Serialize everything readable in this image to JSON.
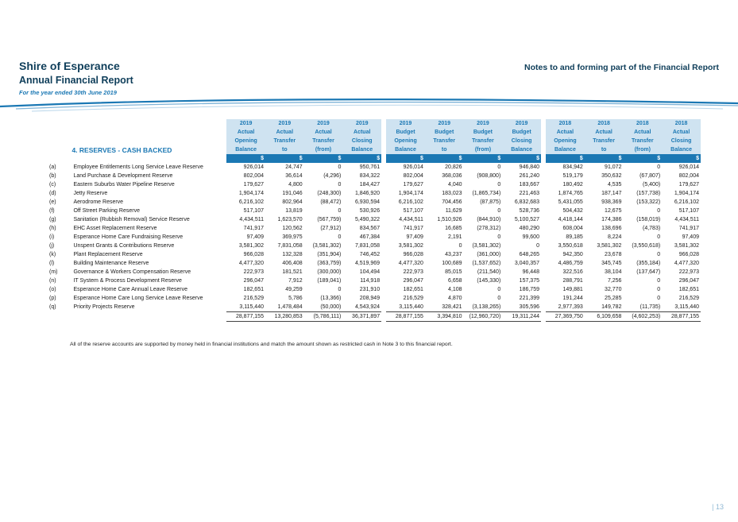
{
  "header": {
    "org": "Shire of Esperance",
    "report": "Annual Financial Report",
    "period": "For the year ended 30th June 2019",
    "notes_title": "Notes to and forming part of the Financial Report"
  },
  "section_title": "4. RESERVES - CASH BACKED",
  "column_groups": [
    [
      {
        "year": "2019",
        "kind": "Actual",
        "l1": "Opening",
        "l2": "Balance"
      },
      {
        "year": "2019",
        "kind": "Actual",
        "l1": "Transfer",
        "l2": "to"
      },
      {
        "year": "2019",
        "kind": "Actual",
        "l1": "Transfer",
        "l2": "(from)"
      },
      {
        "year": "2019",
        "kind": "Actual",
        "l1": "Closing",
        "l2": "Balance"
      }
    ],
    [
      {
        "year": "2019",
        "kind": "Budget",
        "l1": "Opening",
        "l2": "Balance"
      },
      {
        "year": "2019",
        "kind": "Budget",
        "l1": "Transfer",
        "l2": "to"
      },
      {
        "year": "2019",
        "kind": "Budget",
        "l1": "Transfer",
        "l2": "(from)"
      },
      {
        "year": "2019",
        "kind": "Budget",
        "l1": "Closing",
        "l2": "Balance"
      }
    ],
    [
      {
        "year": "2018",
        "kind": "Actual",
        "l1": "Opening",
        "l2": "Balance"
      },
      {
        "year": "2018",
        "kind": "Actual",
        "l1": "Transfer",
        "l2": "to"
      },
      {
        "year": "2018",
        "kind": "Actual",
        "l1": "Transfer",
        "l2": "(from)"
      },
      {
        "year": "2018",
        "kind": "Actual",
        "l1": "Closing",
        "l2": "Balance"
      }
    ]
  ],
  "currency_symbol": "$",
  "rows": [
    {
      "letter": "(a)",
      "name": "Employee Entitlements Long Service Leave Reserve",
      "values": [
        "926,014",
        "24,747",
        "0",
        "950,761",
        "926,014",
        "20,826",
        "0",
        "946,840",
        "834,942",
        "91,072",
        "0",
        "926,014"
      ]
    },
    {
      "letter": "(b)",
      "name": "Land Purchase & Development Reserve",
      "values": [
        "802,004",
        "36,614",
        "(4,296)",
        "834,322",
        "802,004",
        "368,036",
        "(908,800)",
        "261,240",
        "519,179",
        "350,632",
        "(67,807)",
        "802,004"
      ]
    },
    {
      "letter": "(c)",
      "name": "Eastern Suburbs Water Pipeline Reserve",
      "values": [
        "179,627",
        "4,800",
        "0",
        "184,427",
        "179,627",
        "4,040",
        "0",
        "183,667",
        "180,492",
        "4,535",
        "(5,400)",
        "179,627"
      ]
    },
    {
      "letter": "(d)",
      "name": "Jetty Reserve",
      "values": [
        "1,904,174",
        "191,046",
        "(248,300)",
        "1,846,920",
        "1,904,174",
        "183,023",
        "(1,865,734)",
        "221,463",
        "1,874,765",
        "187,147",
        "(157,738)",
        "1,904,174"
      ]
    },
    {
      "letter": "(e)",
      "name": "Aerodrome Reserve",
      "values": [
        "6,216,102",
        "802,964",
        "(88,472)",
        "6,930,594",
        "6,216,102",
        "704,456",
        "(87,875)",
        "6,832,683",
        "5,431,055",
        "938,369",
        "(153,322)",
        "6,216,102"
      ]
    },
    {
      "letter": "(f)",
      "name": "Off Street Parking Reserve",
      "values": [
        "517,107",
        "13,819",
        "0",
        "530,926",
        "517,107",
        "11,629",
        "0",
        "528,736",
        "504,432",
        "12,675",
        "0",
        "517,107"
      ]
    },
    {
      "letter": "(g)",
      "name": "Sanitation (Rubbish Removal) Service Reserve",
      "values": [
        "4,434,511",
        "1,623,570",
        "(567,759)",
        "5,490,322",
        "4,434,511",
        "1,510,926",
        "(844,910)",
        "5,100,527",
        "4,418,144",
        "174,386",
        "(158,019)",
        "4,434,511"
      ]
    },
    {
      "letter": "(h)",
      "name": "EHC Asset Replacement Reserve",
      "values": [
        "741,917",
        "120,562",
        "(27,912)",
        "834,567",
        "741,917",
        "16,685",
        "(278,312)",
        "480,290",
        "608,004",
        "138,696",
        "(4,783)",
        "741,917"
      ]
    },
    {
      "letter": "(i)",
      "name": "Esperance Home Care Fundraising Reserve",
      "values": [
        "97,409",
        "369,975",
        "0",
        "467,384",
        "97,409",
        "2,191",
        "0",
        "99,600",
        "89,185",
        "8,224",
        "0",
        "97,409"
      ]
    },
    {
      "letter": "(j)",
      "name": "Unspent Grants & Contributions Reserve",
      "values": [
        "3,581,302",
        "7,831,058",
        "(3,581,302)",
        "7,831,058",
        "3,581,302",
        "0",
        "(3,581,302)",
        "0",
        "3,550,618",
        "3,581,302",
        "(3,550,618)",
        "3,581,302"
      ]
    },
    {
      "letter": "(k)",
      "name": "Plant Replacement Reserve",
      "values": [
        "966,028",
        "132,328",
        "(351,904)",
        "746,452",
        "966,028",
        "43,237",
        "(361,000)",
        "648,265",
        "942,350",
        "23,678",
        "0",
        "966,028"
      ]
    },
    {
      "letter": "(l)",
      "name": "Building Maintenance Reserve",
      "values": [
        "4,477,320",
        "406,408",
        "(363,759)",
        "4,519,969",
        "4,477,320",
        "100,689",
        "(1,537,652)",
        "3,040,357",
        "4,486,759",
        "345,745",
        "(355,184)",
        "4,477,320"
      ]
    },
    {
      "letter": "(m)",
      "name": "Governance & Workers Compensation Reserve",
      "values": [
        "222,973",
        "181,521",
        "(300,000)",
        "104,494",
        "222,973",
        "85,015",
        "(211,540)",
        "96,448",
        "322,516",
        "38,104",
        "(137,647)",
        "222,973"
      ]
    },
    {
      "letter": "(n)",
      "name": "IT System & Process Development Reserve",
      "values": [
        "296,047",
        "7,912",
        "(189,041)",
        "114,918",
        "296,047",
        "6,658",
        "(145,330)",
        "157,375",
        "288,791",
        "7,256",
        "0",
        "296,047"
      ]
    },
    {
      "letter": "(o)",
      "name": "Esperance Home Care Annual Leave Reserve",
      "values": [
        "182,651",
        "49,259",
        "0",
        "231,910",
        "182,651",
        "4,108",
        "0",
        "186,759",
        "149,881",
        "32,770",
        "0",
        "182,651"
      ]
    },
    {
      "letter": "(p)",
      "name": "Esperance Home Care Long Service Leave Reserve",
      "values": [
        "216,529",
        "5,786",
        "(13,366)",
        "208,949",
        "216,529",
        "4,870",
        "0",
        "221,399",
        "191,244",
        "25,285",
        "0",
        "216,529"
      ]
    },
    {
      "letter": "(q)",
      "name": "Priority Projects Reserve",
      "values": [
        "3,115,440",
        "1,478,484",
        "(50,000)",
        "4,543,924",
        "3,115,440",
        "328,421",
        "(3,138,265)",
        "305,596",
        "2,977,393",
        "149,782",
        "(11,735)",
        "3,115,440"
      ]
    }
  ],
  "totals": [
    "28,877,155",
    "13,280,853",
    "(5,786,111)",
    "36,371,897",
    "28,877,155",
    "3,394,810",
    "(12,960,720)",
    "19,311,244",
    "27,369,750",
    "6,109,658",
    "(4,602,253)",
    "28,877,155"
  ],
  "footnote": "All of the reserve accounts are supported by money held in financial institutions and match the amount shown as restricted cash in Note 3 to this financial report.",
  "page_number": "| 13"
}
